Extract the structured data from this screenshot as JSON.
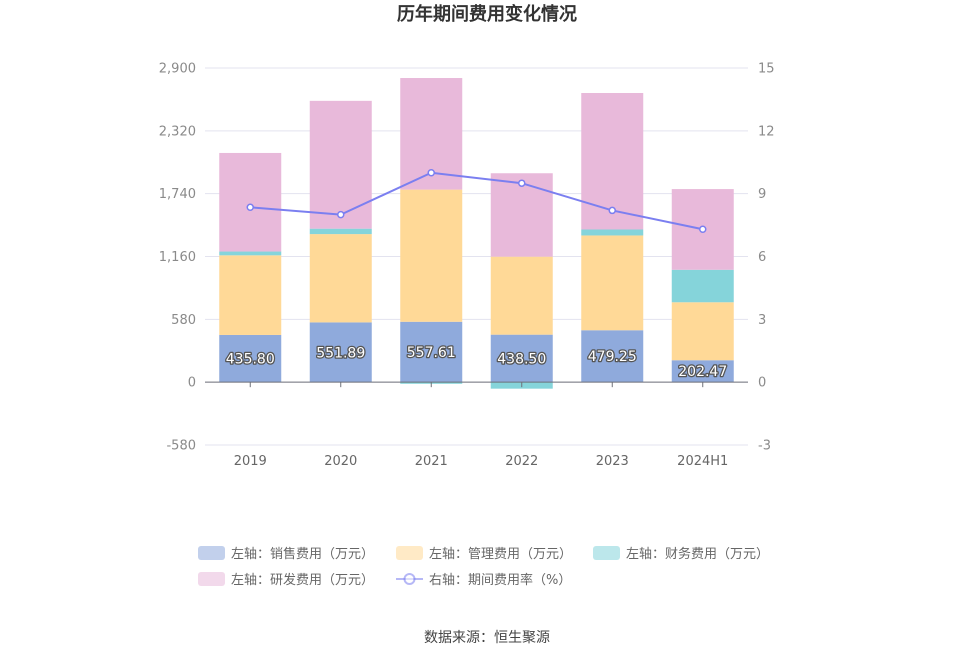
{
  "chart_data": {
    "type": "bar",
    "title": "历年期间费用变化情况",
    "categories": [
      "2019",
      "2020",
      "2021",
      "2022",
      "2023",
      "2024H1"
    ],
    "left_axis": {
      "ticks": [
        "-580",
        "0",
        "580",
        "1,160",
        "1,740",
        "2,320",
        "2,900"
      ],
      "ylim": [
        -580,
        2900
      ]
    },
    "right_axis": {
      "ticks": [
        "-3",
        "0",
        "3",
        "6",
        "9",
        "12",
        "15"
      ],
      "ylim": [
        -3,
        15
      ]
    },
    "series": [
      {
        "name": "左轴：销售费用（万元）",
        "axis": "left",
        "kind": "bar",
        "color": "#8faadc",
        "values": [
          435.8,
          551.89,
          557.61,
          438.5,
          479.25,
          202.47
        ],
        "labels": [
          "435.80",
          "551.89",
          "557.61",
          "438.50",
          "479.25",
          "202.47"
        ]
      },
      {
        "name": "左轴：管理费用（万元）",
        "axis": "left",
        "kind": "bar",
        "color": "#ffd997",
        "values": [
          735,
          815,
          1220,
          720,
          875,
          535
        ]
      },
      {
        "name": "左轴：财务费用（万元）",
        "axis": "left",
        "kind": "bar",
        "color": "#85d4da",
        "values": [
          35,
          50,
          -15,
          -60,
          55,
          300
        ]
      },
      {
        "name": "左轴：研发费用（万元）",
        "axis": "left",
        "kind": "bar",
        "color": "#e8b9da",
        "values": [
          910,
          1180,
          1030,
          770,
          1260,
          745
        ]
      },
      {
        "name": "右轴：期间费用率（%）",
        "axis": "right",
        "kind": "line",
        "color": "#7b7ff0",
        "values": [
          8.35,
          8.0,
          10.0,
          9.5,
          8.2,
          7.3
        ]
      }
    ],
    "legend_position": "bottom",
    "grid": true
  },
  "source": "数据来源：恒生聚源"
}
